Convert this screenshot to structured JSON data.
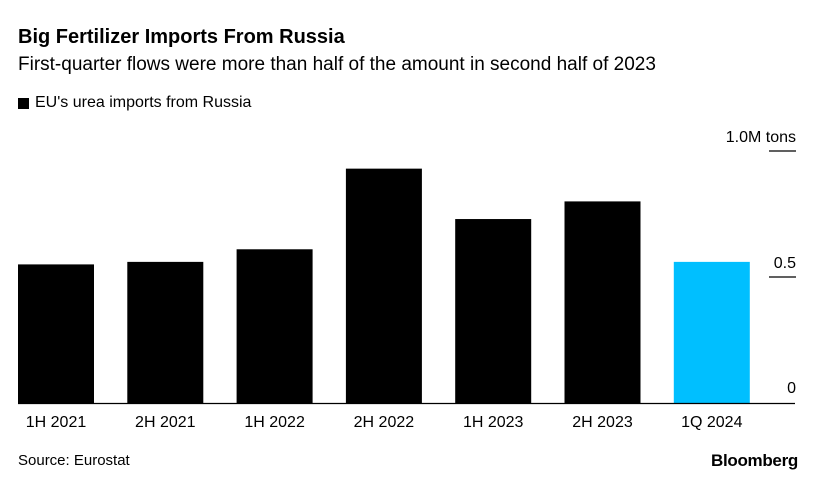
{
  "chart_data": {
    "type": "bar",
    "title": "Big Fertilizer Imports From Russia",
    "subtitle": "First-quarter flows were more than half of the amount in second half of 2023",
    "legend": [
      {
        "name": "EU's urea imports from Russia",
        "color": "#000000"
      }
    ],
    "legend_placement": "top-left",
    "categories": [
      "1H 2021",
      "2H 2021",
      "1H 2022",
      "2H 2022",
      "1H 2023",
      "2H 2023",
      "1Q 2024"
    ],
    "values": [
      0.55,
      0.56,
      0.61,
      0.93,
      0.73,
      0.8,
      0.56
    ],
    "colors": [
      "#000000",
      "#000000",
      "#000000",
      "#000000",
      "#000000",
      "#000000",
      "#00BFFF"
    ],
    "ylim": [
      0,
      1.0
    ],
    "yticks": [
      {
        "value": 0,
        "label": "0"
      },
      {
        "value": 0.5,
        "label": "0.5"
      },
      {
        "value": 1.0,
        "label": "1.0M tons"
      }
    ],
    "y_axis_side": "right",
    "grid": false,
    "source": "Source: Eurostat",
    "brand": "Bloomberg"
  }
}
